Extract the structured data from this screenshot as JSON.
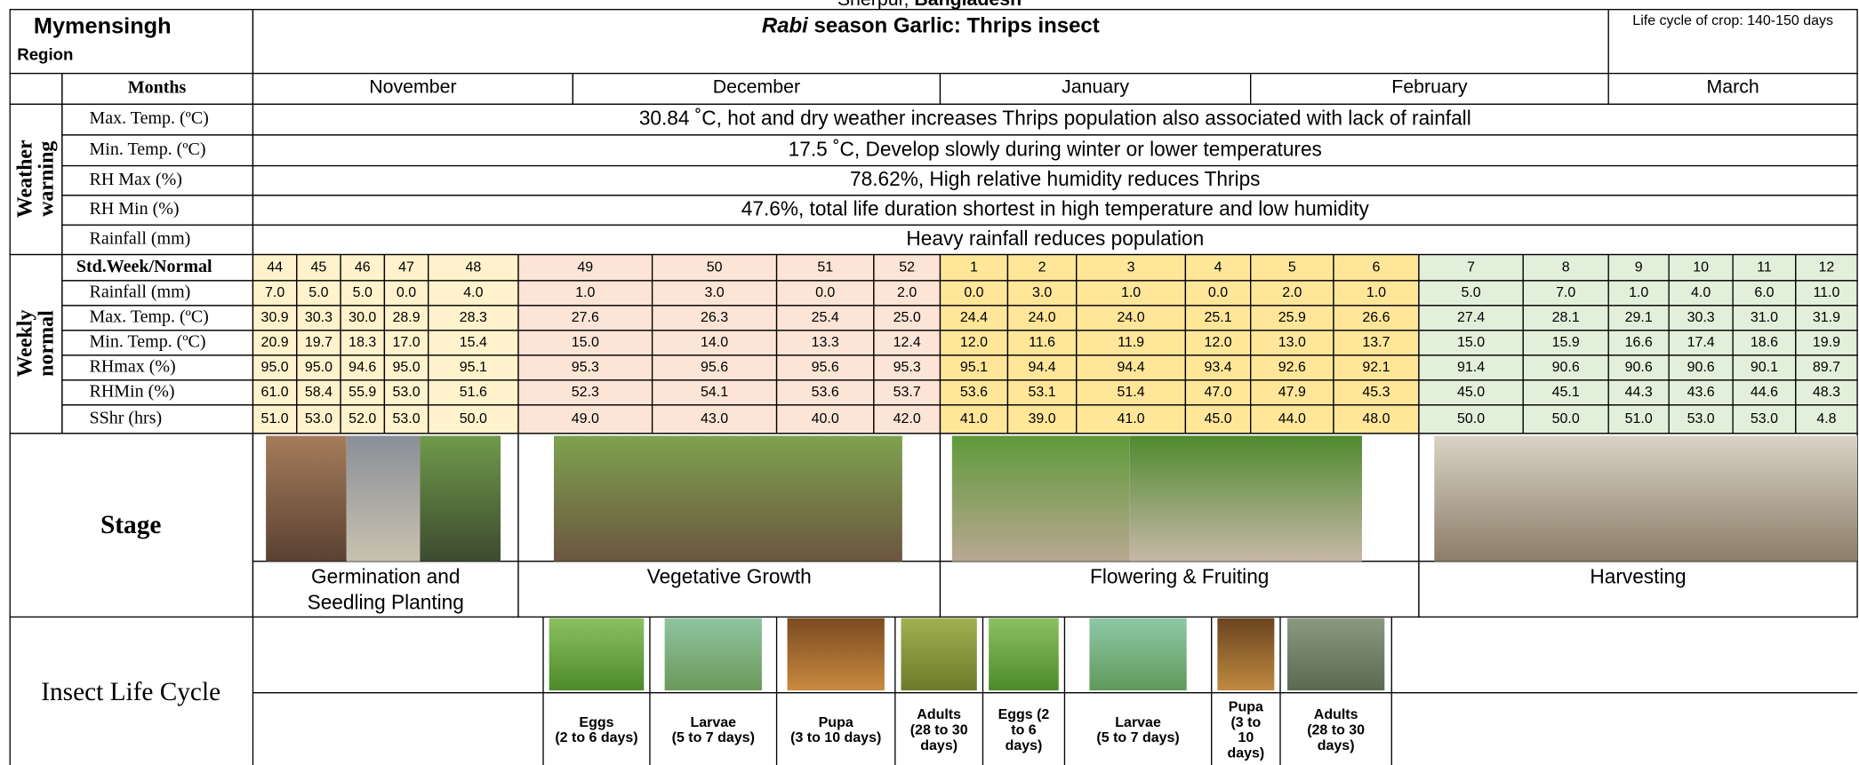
{
  "caption": {
    "place": "Sherpur,",
    "country": "Bangladesh"
  },
  "header": {
    "region": [
      "Mymensingh",
      "Region"
    ],
    "title_italic": "Rabi",
    "title": "season Garlic: Thrips insect",
    "crop_life": "Life cycle of crop: 140-150 days"
  },
  "months": {
    "label": "Months",
    "names": [
      "November",
      "December",
      "January",
      "February",
      "March"
    ]
  },
  "weather_warning": {
    "label": [
      "Weather",
      "warning"
    ],
    "rows": [
      {
        "label": "Max. Temp. (ºC)",
        "text": "30.84 ˚C, hot and dry weather increases Thrips population also associated with lack of rainfall"
      },
      {
        "label": "Min. Temp. (ºC)",
        "text": "17.5 ˚C, Develop slowly during winter or lower temperatures"
      },
      {
        "label": "RH Max (%)",
        "text": "78.62%, High relative humidity reduces Thrips"
      },
      {
        "label": "RH Min (%)",
        "text": "47.6%, total life duration shortest in high temperature and low humidity"
      },
      {
        "label": "Rainfall (mm)",
        "text": "Heavy rainfall reduces population"
      }
    ]
  },
  "weekly_normal": {
    "label": [
      "Weekly",
      "normal"
    ],
    "header_label": "Std.Week/Normal",
    "weeks": [
      "44",
      "45",
      "46",
      "47",
      "48",
      "49",
      "50",
      "51",
      "52",
      "1",
      "2",
      "3",
      "4",
      "5",
      "6",
      "7",
      "8",
      "9",
      "10",
      "11",
      "12"
    ],
    "rows": [
      {
        "label": "Rainfall (mm)",
        "values": [
          "7.0",
          "5.0",
          "5.0",
          "0.0",
          "4.0",
          "1.0",
          "3.0",
          "0.0",
          "2.0",
          "0.0",
          "3.0",
          "1.0",
          "0.0",
          "2.0",
          "1.0",
          "5.0",
          "7.0",
          "1.0",
          "4.0",
          "6.0",
          "11.0"
        ]
      },
      {
        "label": "Max. Temp. (ºC)",
        "values": [
          "30.9",
          "30.3",
          "30.0",
          "28.9",
          "28.3",
          "27.6",
          "26.3",
          "25.4",
          "25.0",
          "24.4",
          "24.0",
          "24.0",
          "25.1",
          "25.9",
          "26.6",
          "27.4",
          "28.1",
          "29.1",
          "30.3",
          "31.0",
          "31.9"
        ]
      },
      {
        "label": "Min. Temp. (ºC)",
        "values": [
          "20.9",
          "19.7",
          "18.3",
          "17.0",
          "15.4",
          "15.0",
          "14.0",
          "13.3",
          "12.4",
          "12.0",
          "11.6",
          "11.9",
          "12.0",
          "13.0",
          "13.7",
          "15.0",
          "15.9",
          "16.6",
          "17.4",
          "18.6",
          "19.9"
        ]
      },
      {
        "label": "RHmax (%)",
        "values": [
          "95.0",
          "95.0",
          "94.6",
          "95.0",
          "95.1",
          "95.3",
          "95.6",
          "95.6",
          "95.3",
          "95.1",
          "94.4",
          "94.4",
          "93.4",
          "92.6",
          "92.1",
          "91.4",
          "90.6",
          "90.6",
          "90.6",
          "90.1",
          "89.7"
        ]
      },
      {
        "label": "RHMin (%)",
        "values": [
          "61.0",
          "58.4",
          "55.9",
          "53.0",
          "51.6",
          "52.3",
          "54.1",
          "53.6",
          "53.7",
          "53.6",
          "53.1",
          "51.4",
          "47.0",
          "47.9",
          "45.3",
          "45.0",
          "45.1",
          "44.3",
          "43.6",
          "44.6",
          "48.3"
        ]
      },
      {
        "label": "SShr (hrs)",
        "values": [
          "51.0",
          "53.0",
          "52.0",
          "53.0",
          "50.0",
          "49.0",
          "43.0",
          "40.0",
          "42.0",
          "41.0",
          "39.0",
          "41.0",
          "45.0",
          "44.0",
          "48.0",
          "50.0",
          "50.0",
          "51.0",
          "53.0",
          "53.0",
          "4.8"
        ]
      }
    ]
  },
  "stage": {
    "label": "Stage",
    "stages": [
      {
        "name": [
          "Germination and",
          "Seedling Planting"
        ]
      },
      {
        "name": [
          "Vegetative Growth"
        ]
      },
      {
        "name": [
          "Flowering & Fruiting"
        ]
      },
      {
        "name": [
          "Harvesting"
        ]
      }
    ]
  },
  "insect_life_cycle": {
    "label": "Insect Life Cycle",
    "stages": [
      {
        "lines": [
          "Eggs",
          "(2 to 6 days)"
        ]
      },
      {
        "lines": [
          "Larvae",
          "(5 to 7 days)"
        ]
      },
      {
        "lines": [
          "Pupa",
          "(3 to 10 days)"
        ]
      },
      {
        "lines": [
          "Adults",
          "(28 to 30",
          "days)"
        ]
      },
      {
        "lines": [
          "Eggs (2",
          "to 6",
          "days)"
        ]
      },
      {
        "lines": [
          "Larvae",
          "(5 to 7 days)"
        ]
      },
      {
        "lines": [
          "Pupa",
          "(3 to",
          "10",
          "days)"
        ]
      },
      {
        "lines": [
          "Adults",
          "(28 to 30",
          "days)"
        ]
      }
    ]
  }
}
